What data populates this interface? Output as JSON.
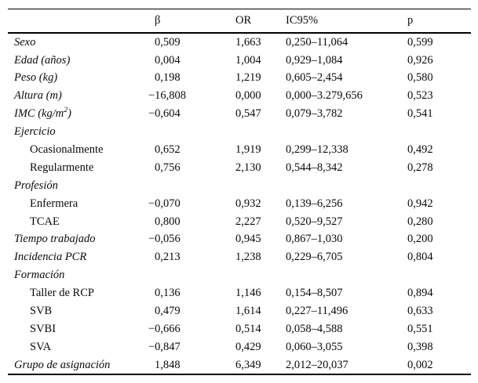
{
  "page": {
    "background": "#ffffff",
    "text_color": "#0a0a0a",
    "rule_color": "#000000"
  },
  "table": {
    "columns": [
      "",
      "β",
      "OR",
      "IC95%",
      "p"
    ],
    "rows": [
      {
        "label": "Sexo",
        "italic": true,
        "indent": false,
        "beta": "0,509",
        "or": "1,663",
        "ic95": "0,250–11,064",
        "p": "0,599"
      },
      {
        "label": "Edad (años)",
        "italic": true,
        "indent": false,
        "beta": "0,004",
        "or": "1,004",
        "ic95": "0,929–1,084",
        "p": "0,926"
      },
      {
        "label": "Peso (kg)",
        "italic": true,
        "indent": false,
        "beta": "0,198",
        "or": "1,219",
        "ic95": "0,605–2,454",
        "p": "0,580"
      },
      {
        "label": "Altura (m)",
        "italic": true,
        "indent": false,
        "beta": "−16,808",
        "or": "0,000",
        "ic95": "0,000–3.279,656",
        "p": "0,523"
      },
      {
        "label": "IMC (kg/m^2)",
        "italic": true,
        "indent": false,
        "beta": "−0,604",
        "or": "0,547",
        "ic95": "0,079–3,782",
        "p": "0,541"
      },
      {
        "label": "Ejercicio",
        "italic": true,
        "indent": false,
        "beta": "",
        "or": "",
        "ic95": "",
        "p": ""
      },
      {
        "label": "Ocasionalmente",
        "italic": false,
        "indent": true,
        "beta": "0,652",
        "or": "1,919",
        "ic95": "0,299–12,338",
        "p": "0,492"
      },
      {
        "label": "Regularmente",
        "italic": false,
        "indent": true,
        "beta": "0,756",
        "or": "2,130",
        "ic95": "0,544–8,342",
        "p": "0,278"
      },
      {
        "label": "Profesión",
        "italic": true,
        "indent": false,
        "beta": "",
        "or": "",
        "ic95": "",
        "p": ""
      },
      {
        "label": "Enfermera",
        "italic": false,
        "indent": true,
        "beta": "−0,070",
        "or": "0,932",
        "ic95": "0,139–6,256",
        "p": "0,942"
      },
      {
        "label": "TCAE",
        "italic": false,
        "indent": true,
        "beta": "0,800",
        "or": "2,227",
        "ic95": "0,520–9,527",
        "p": "0,280"
      },
      {
        "label": "Tiempo trabajado",
        "italic": true,
        "indent": false,
        "beta": "−0,056",
        "or": "0,945",
        "ic95": "0,867–1,030",
        "p": "0,200"
      },
      {
        "label": "Incidencia PCR",
        "italic": true,
        "indent": false,
        "beta": "0,213",
        "or": "1,238",
        "ic95": "0,229–6,705",
        "p": "0,804"
      },
      {
        "label": "Formación",
        "italic": true,
        "indent": false,
        "beta": "",
        "or": "",
        "ic95": "",
        "p": ""
      },
      {
        "label": "Taller de RCP",
        "italic": false,
        "indent": true,
        "beta": "0,136",
        "or": "1,146",
        "ic95": "0,154–8,507",
        "p": "0,894"
      },
      {
        "label": "SVB",
        "italic": false,
        "indent": true,
        "beta": "0,479",
        "or": "1,614",
        "ic95": "0,227–11,496",
        "p": "0,633"
      },
      {
        "label": "SVBI",
        "italic": false,
        "indent": true,
        "beta": "−0,666",
        "or": "0,514",
        "ic95": "0,058–4,588",
        "p": "0,551"
      },
      {
        "label": "SVA",
        "italic": false,
        "indent": true,
        "beta": "−0,847",
        "or": "0,429",
        "ic95": "0,060–3,055",
        "p": "0,398"
      },
      {
        "label": "Grupo de asignación",
        "italic": true,
        "indent": false,
        "beta": "1,848",
        "or": "6,349",
        "ic95": "2,012–20,037",
        "p": "0,002"
      }
    ]
  }
}
